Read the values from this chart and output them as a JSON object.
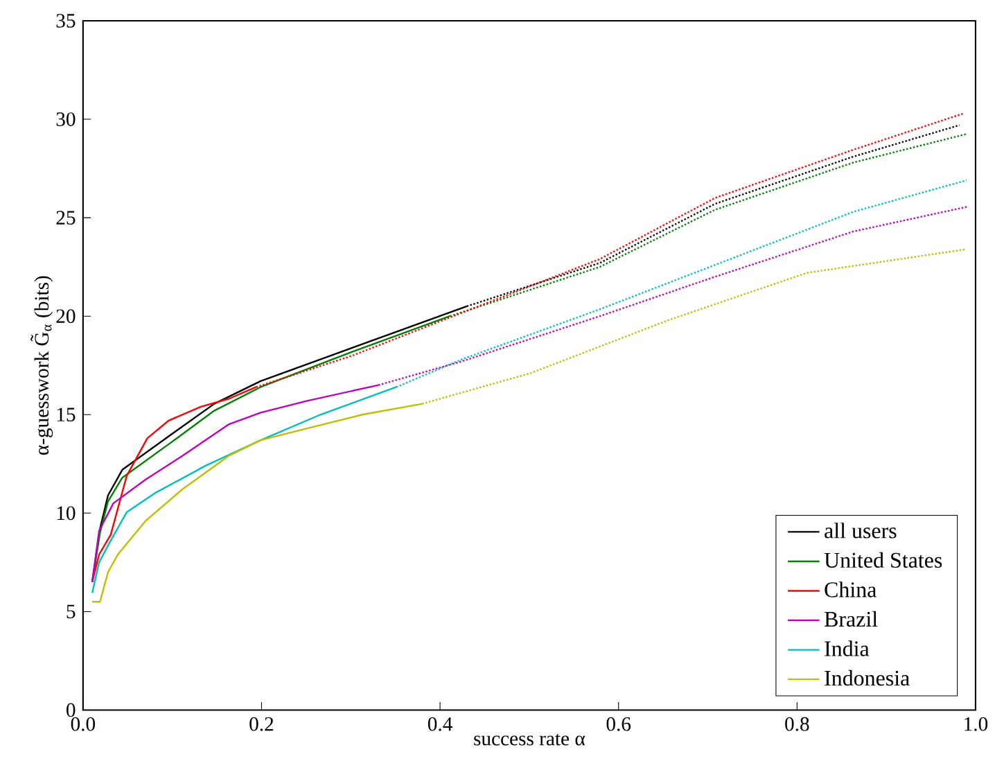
{
  "chart_data": {
    "type": "line",
    "xlabel": "success rate α",
    "ylabel": "α-guesswork  G̃$_{α}$ (bits)",
    "xlim": [
      0,
      1
    ],
    "ylim": [
      0,
      35
    ],
    "xticks": [
      {
        "value": 0,
        "label": "0.0"
      },
      {
        "value": 0.2,
        "label": "0.2"
      },
      {
        "value": 0.4,
        "label": "0.4"
      },
      {
        "value": 0.6,
        "label": "0.6"
      },
      {
        "value": 0.8,
        "label": "0.8"
      },
      {
        "value": 1,
        "label": "1.0"
      }
    ],
    "yticks": [
      0,
      5,
      10,
      15,
      20,
      25,
      30,
      35
    ],
    "grid": false,
    "legend": "bottom right",
    "marker": "none",
    "series": [
      {
        "name": "all users",
        "color": "#000000",
        "line_style": "solid",
        "x": [
          0.0103,
          0.019,
          0.028,
          0.044,
          0.096,
          0.147,
          0.199,
          0.302,
          0.43
        ],
        "values": [
          6.5,
          9.2,
          10.9,
          12.2,
          13.9,
          15.55,
          16.7,
          18.4,
          20.5
        ]
      },
      {
        "name": "United States",
        "color": "#008000",
        "line_style": "solid",
        "x": [
          0.0103,
          0.019,
          0.028,
          0.044,
          0.096,
          0.147,
          0.199,
          0.302,
          0.411
        ],
        "values": [
          6.5,
          9.0,
          10.6,
          11.8,
          13.5,
          15.2,
          16.4,
          18.2,
          20.0
        ]
      },
      {
        "name": "China",
        "color": "#ff0000",
        "line_style": "solid",
        "x": [
          0.0103,
          0.018,
          0.031,
          0.049,
          0.072,
          0.096,
          0.132,
          0.163,
          0.194
        ],
        "values": [
          6.5,
          7.9,
          8.9,
          11.9,
          13.8,
          14.7,
          15.4,
          15.8,
          16.4
        ]
      },
      {
        "name": "Brazil",
        "color": "#bf00bf",
        "line_style": "solid",
        "x": [
          0.0103,
          0.018,
          0.034,
          0.07,
          0.111,
          0.163,
          0.199,
          0.251,
          0.331
        ],
        "values": [
          6.5,
          9.1,
          10.5,
          11.7,
          12.9,
          14.5,
          15.1,
          15.7,
          16.5
        ]
      },
      {
        "name": "India",
        "color": "#00bfbf",
        "line_style": "solid",
        "x": [
          0.0103,
          0.018,
          0.031,
          0.049,
          0.08,
          0.137,
          0.199,
          0.266,
          0.351
        ],
        "values": [
          5.95,
          7.5,
          8.6,
          10.05,
          11.0,
          12.4,
          13.7,
          15.0,
          16.4
        ]
      },
      {
        "name": "Indonesia",
        "color": "#bfbf00",
        "line_style": "solid",
        "x": [
          0.0103,
          0.019,
          0.028,
          0.039,
          0.07,
          0.111,
          0.163,
          0.199,
          0.251,
          0.313,
          0.38
        ],
        "values": [
          5.5,
          5.5,
          7.0,
          7.9,
          9.6,
          11.2,
          12.9,
          13.7,
          14.3,
          15.0,
          15.55
        ]
      },
      {
        "color": "#000000",
        "line_style": "dotted",
        "x": [
          0.43,
          0.579,
          0.708,
          0.863,
          0.982
        ],
        "values": [
          20.5,
          22.7,
          25.7,
          28.1,
          29.7
        ]
      },
      {
        "color": "#008000",
        "line_style": "dotted",
        "x": [
          0.411,
          0.579,
          0.708,
          0.863,
          0.99
        ],
        "values": [
          20.0,
          22.5,
          25.4,
          27.8,
          29.25
        ]
      },
      {
        "color": "#ff0000",
        "line_style": "dotted",
        "x": [
          0.194,
          0.302,
          0.426,
          0.579,
          0.708,
          0.863,
          0.987
        ],
        "values": [
          16.4,
          18.0,
          20.2,
          22.9,
          26.0,
          28.45,
          30.3
        ]
      },
      {
        "color": "#bf00bf",
        "line_style": "dotted",
        "x": [
          0.331,
          0.424,
          0.579,
          0.708,
          0.863,
          0.99
        ],
        "values": [
          16.5,
          17.7,
          20.0,
          22.0,
          24.3,
          25.55
        ]
      },
      {
        "color": "#00bfbf",
        "line_style": "dotted",
        "x": [
          0.351,
          0.424,
          0.579,
          0.708,
          0.863,
          0.99
        ],
        "values": [
          16.4,
          17.8,
          20.35,
          22.6,
          25.3,
          26.9
        ]
      },
      {
        "color": "#bfbf00",
        "line_style": "dotted",
        "x": [
          0.38,
          0.501,
          0.656,
          0.811,
          0.99
        ],
        "values": [
          15.55,
          17.1,
          19.8,
          22.2,
          23.4
        ]
      }
    ]
  }
}
